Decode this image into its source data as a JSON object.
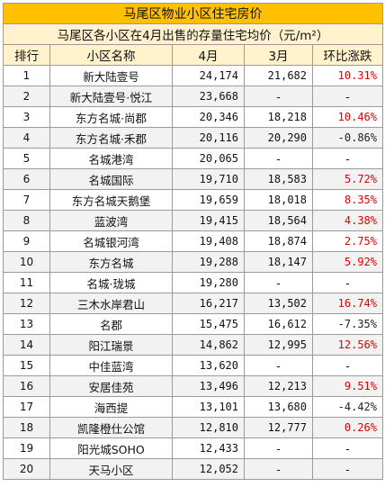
{
  "title": "马尾区物业小区住宅房价",
  "subtitle": "马尾区各小区在4月出售的存量住宅均价（元/m²）",
  "headers": [
    "排行",
    "小区名称",
    "4月",
    "3月",
    "环比涨跌"
  ],
  "colors": {
    "title_bg": "#ffc000",
    "header_bg": "#fff2cc",
    "rise": "#e00000",
    "fall": "#222222"
  },
  "rows": [
    {
      "rank": "1",
      "name": "新大陆壹号",
      "apr": "24,174",
      "mar": "21,682",
      "change": "10.31%",
      "dir": "up"
    },
    {
      "rank": "2",
      "name": "新大陆壹号·悦江",
      "apr": "23,668",
      "mar": "-",
      "change": "-",
      "dir": "none"
    },
    {
      "rank": "3",
      "name": "东方名城·尚郡",
      "apr": "20,346",
      "mar": "18,218",
      "change": "10.46%",
      "dir": "up"
    },
    {
      "rank": "4",
      "name": "东方名城·禾郡",
      "apr": "20,116",
      "mar": "20,290",
      "change": "-0.86%",
      "dir": "down"
    },
    {
      "rank": "5",
      "name": "名城港湾",
      "apr": "20,065",
      "mar": "-",
      "change": "-",
      "dir": "none"
    },
    {
      "rank": "6",
      "name": "名城国际",
      "apr": "19,710",
      "mar": "18,583",
      "change": "5.72%",
      "dir": "up"
    },
    {
      "rank": "7",
      "name": "东方名城天鹅堡",
      "apr": "19,659",
      "mar": "18,018",
      "change": "8.35%",
      "dir": "up"
    },
    {
      "rank": "8",
      "name": "蓝波湾",
      "apr": "19,415",
      "mar": "18,564",
      "change": "4.38%",
      "dir": "up"
    },
    {
      "rank": "9",
      "name": "名城银河湾",
      "apr": "19,408",
      "mar": "18,874",
      "change": "2.75%",
      "dir": "up"
    },
    {
      "rank": "10",
      "name": "东方名城",
      "apr": "19,288",
      "mar": "18,147",
      "change": "5.92%",
      "dir": "up"
    },
    {
      "rank": "11",
      "name": "名城·珑城",
      "apr": "19,280",
      "mar": "-",
      "change": "-",
      "dir": "none"
    },
    {
      "rank": "12",
      "name": "三木水岸君山",
      "apr": "16,217",
      "mar": "13,502",
      "change": "16.74%",
      "dir": "up"
    },
    {
      "rank": "13",
      "name": "名郡",
      "apr": "15,475",
      "mar": "16,612",
      "change": "-7.35%",
      "dir": "down"
    },
    {
      "rank": "14",
      "name": "阳江瑞景",
      "apr": "14,862",
      "mar": "12,995",
      "change": "12.56%",
      "dir": "up"
    },
    {
      "rank": "15",
      "name": "中佳蓝湾",
      "apr": "13,620",
      "mar": "-",
      "change": "-",
      "dir": "none"
    },
    {
      "rank": "16",
      "name": "安居佳苑",
      "apr": "13,496",
      "mar": "12,213",
      "change": "9.51%",
      "dir": "up"
    },
    {
      "rank": "17",
      "name": "海西提",
      "apr": "13,101",
      "mar": "13,680",
      "change": "-4.42%",
      "dir": "down"
    },
    {
      "rank": "18",
      "name": "凯隆橙仕公馆",
      "apr": "12,810",
      "mar": "12,777",
      "change": "0.26%",
      "dir": "up"
    },
    {
      "rank": "19",
      "name": "阳光城SOHO",
      "apr": "12,433",
      "mar": "-",
      "change": "-",
      "dir": "none"
    },
    {
      "rank": "20",
      "name": "天马小区",
      "apr": "12,052",
      "mar": "-",
      "change": "-",
      "dir": "none"
    }
  ]
}
